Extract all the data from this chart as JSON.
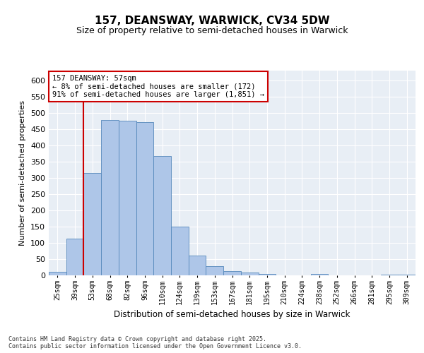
{
  "title": "157, DEANSWAY, WARWICK, CV34 5DW",
  "subtitle": "Size of property relative to semi-detached houses in Warwick",
  "xlabel": "Distribution of semi-detached houses by size in Warwick",
  "ylabel": "Number of semi-detached properties",
  "categories": [
    "25sqm",
    "39sqm",
    "53sqm",
    "68sqm",
    "82sqm",
    "96sqm",
    "110sqm",
    "124sqm",
    "139sqm",
    "153sqm",
    "167sqm",
    "181sqm",
    "195sqm",
    "210sqm",
    "224sqm",
    "238sqm",
    "252sqm",
    "266sqm",
    "281sqm",
    "295sqm",
    "309sqm"
  ],
  "bar_heights": [
    10,
    113,
    315,
    478,
    475,
    472,
    368,
    150,
    60,
    28,
    14,
    8,
    5,
    0,
    0,
    5,
    0,
    0,
    0,
    3,
    2
  ],
  "bar_color": "#aec6e8",
  "bar_edge_color": "#5588bb",
  "vline_x": 2.0,
  "vline_color": "#cc0000",
  "annotation_text": "157 DEANSWAY: 57sqm\n← 8% of semi-detached houses are smaller (172)\n91% of semi-detached houses are larger (1,851) →",
  "annotation_box_color": "#ffffff",
  "annotation_box_edge": "#cc0000",
  "footer": "Contains HM Land Registry data © Crown copyright and database right 2025.\nContains public sector information licensed under the Open Government Licence v3.0.",
  "ylim": [
    0,
    630
  ],
  "yticks": [
    0,
    50,
    100,
    150,
    200,
    250,
    300,
    350,
    400,
    450,
    500,
    550,
    600
  ],
  "background_color": "#e8eef5",
  "fig_background": "#ffffff",
  "title_fontsize": 11,
  "subtitle_fontsize": 9
}
